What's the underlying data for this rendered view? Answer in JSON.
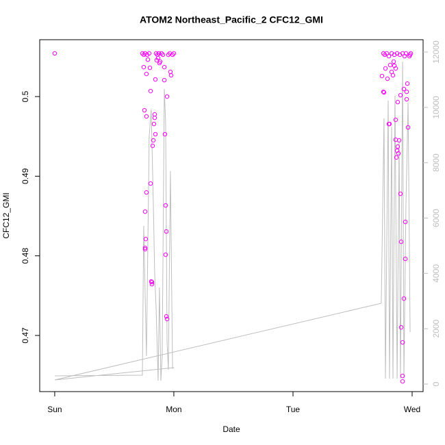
{
  "chart_data": {
    "type": "scatter",
    "title": "ATOM2 Northeast_Pacific_2 CFC12_GMI",
    "xlabel": "Date",
    "ylabel": "CFC12_GMI",
    "xlim": [
      -0.126,
      3.092
    ],
    "xticks": [
      {
        "value": 0,
        "label": "Sun"
      },
      {
        "value": 1,
        "label": "Mon"
      },
      {
        "value": 2,
        "label": "Tue"
      },
      {
        "value": 3,
        "label": "Wed"
      }
    ],
    "ylim": [
      0.46295,
      0.50714
    ],
    "yticks": [
      0.47,
      0.48,
      0.49,
      0.5
    ],
    "y2lim": [
      -272,
      12446
    ],
    "y2ticks": [
      0,
      2000,
      4000,
      6000,
      8000,
      10000,
      12000
    ],
    "y2color": "#bebebe",
    "series": [
      {
        "type": "scatter",
        "color": "#ff00ff",
        "x": [
          0,
          0.736,
          0.747,
          0.759,
          0.776,
          0.793,
          0.747,
          0.77,
          0.782,
          0.799,
          0.805,
          0.753,
          0.77,
          0.77,
          0.759,
          0.764,
          0.759,
          0.759,
          0.805,
          0.81,
          0.816,
          0.816,
          0.822,
          0.828,
          0.833,
          0.839,
          0.839,
          0.845,
          0.845,
          0.856,
          0.862,
          0.874,
          0.879,
          0.885,
          0.897,
          0.908,
          0.92,
          0.92,
          0.925,
          0.931,
          0.931,
          0.937,
          0.937,
          0.943,
          0.943,
          0.954,
          0.966,
          0.971,
          0.977,
          0.989,
          1.0,
          0.851,
          0.868,
          2.759,
          2.77,
          2.787,
          2.805,
          2.828,
          2.851,
          2.874,
          2.897,
          2.92,
          2.937,
          2.948,
          2.747,
          2.759,
          2.764,
          2.776,
          2.793,
          2.805,
          2.81,
          2.816,
          2.828,
          2.839,
          2.851,
          2.862,
          2.862,
          2.868,
          2.874,
          2.879,
          2.885,
          2.891,
          2.879,
          2.902,
          2.902,
          2.908,
          2.908,
          2.92,
          2.92,
          2.92,
          2.931,
          2.931,
          2.943,
          2.943,
          2.954,
          2.954,
          2.96,
          2.966,
          2.977,
          2.983,
          2.989,
          2.845,
          2.862
        ],
        "values": [
          0.50542,
          0.50542,
          0.50525,
          0.50542,
          0.50525,
          0.50542,
          0.5037,
          0.50284,
          0.50464,
          0.50361,
          0.50069,
          0.49828,
          0.49751,
          0.48796,
          0.48555,
          0.48211,
          0.481,
          0.48083,
          0.48908,
          0.47678,
          0.47644,
          0.4767,
          0.49381,
          0.4945,
          0.49656,
          0.49776,
          0.49733,
          0.49527,
          0.50215,
          0.50456,
          0.50525,
          0.50542,
          0.50421,
          0.50439,
          0.50542,
          0.50525,
          0.5037,
          0.50206,
          0.49527,
          0.48633,
          0.48014,
          0.48306,
          0.4724,
          0.47206,
          0.5,
          0.50525,
          0.50542,
          0.5031,
          0.50267,
          0.50525,
          0.50542,
          0.50542,
          0.50482,
          0.50542,
          0.50525,
          0.50542,
          0.50507,
          0.50542,
          0.50525,
          0.50542,
          0.50525,
          0.50542,
          0.50507,
          0.50542,
          0.50258,
          0.5006,
          0.50052,
          0.50353,
          0.50224,
          0.49656,
          0.49656,
          0.50396,
          0.5031,
          0.50267,
          0.50387,
          0.49458,
          0.49708,
          0.49235,
          0.49321,
          0.49372,
          0.49286,
          0.4945,
          0.49931,
          0.50017,
          0.48779,
          0.48177,
          0.47102,
          0.46913,
          0.46423,
          0.46492,
          0.47463,
          0.50095,
          0.47962,
          0.48426,
          0.5006,
          0.49966,
          0.50163,
          0.49613,
          0.50507,
          0.50525,
          0.50542,
          0.50439,
          0.50353
        ]
      },
      {
        "type": "line",
        "color": "#bebebe",
        "axis": "y2",
        "x": [
          0,
          0.736,
          0.747,
          0.77,
          0.793,
          0.81,
          0.828,
          0.839,
          0.851,
          0.868,
          0.879,
          0.891,
          0.902,
          0.92,
          0.931,
          0.943,
          0.954,
          0.971,
          0.989,
          1.0,
          0,
          2.741,
          2.764,
          2.776,
          2.799,
          2.81,
          2.828,
          2.839,
          2.856,
          2.874,
          2.891,
          2.902,
          2.92,
          2.931,
          2.948,
          2.966,
          2.983
        ],
        "values": [
          297,
          322,
          5717,
          1015,
          8935,
          9925,
          6460,
          3985,
          2747,
          124,
          3490,
          124,
          1015,
          10667,
          9430,
          1510,
          520,
          7697,
          569,
          594,
          149,
          2921,
          9603,
          198,
          10247,
          198,
          9306,
          198,
          10420,
          198,
          8811,
          198,
          11657,
          198,
          6460,
          10172,
          1881
        ]
      }
    ]
  }
}
